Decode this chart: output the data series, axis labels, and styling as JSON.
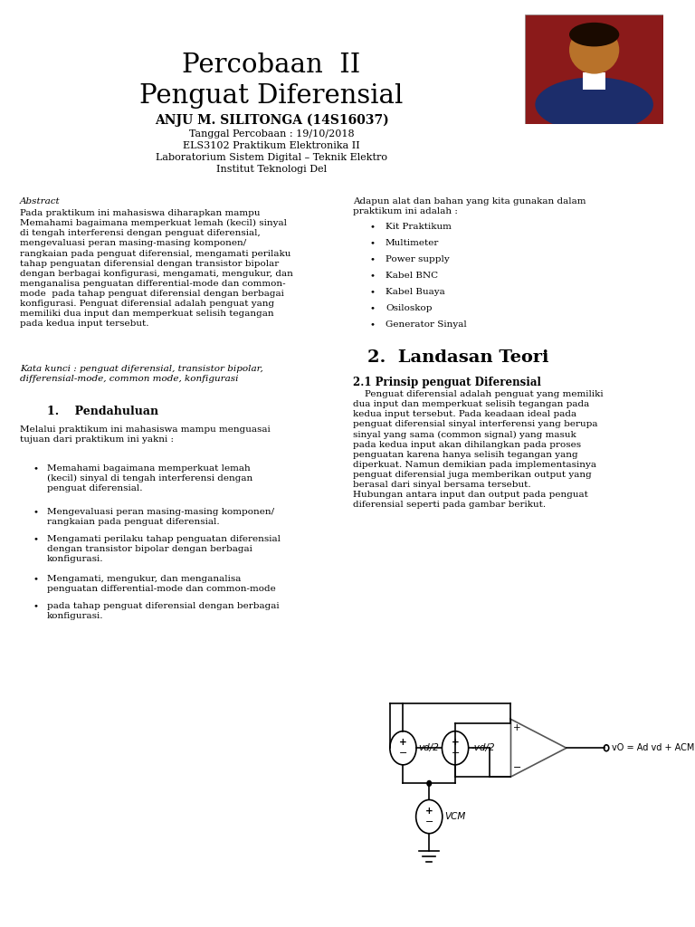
{
  "title_line1": "Percobaan  II",
  "title_line2": "Penguat Diferensial",
  "author": "ANJU M. SILITONGA (14S16037)",
  "date": "Tanggal Percobaan : 19/10/2018",
  "course": "ELS3102 Praktikum Elektronika II",
  "lab": "Laboratorium Sistem Digital – Teknik Elektro",
  "institute": "Institut Teknologi Del",
  "abstract_label": "Abstract",
  "abstract_text": "Pada praktikum ini mahasiswa diharapkan mampu\nMemahami bagaimana memperkuat lemah (kecil) sinyal\ndi tengah interferensi dengan penguat diferensial,\nmengevaluasi peran masing-masing komponen/\nrangkaian pada penguat diferensial, mengamati perilaku\ntahap penguatan diferensial dengan transistor bipolar\ndengan berbagai konfigurasi, mengamati, mengukur, dan\nmenganalisa penguatan differential-mode dan common-\nmode  pada tahap penguat diferensial dengan berbagai\nkonfigurasi. Penguat diferensial adalah penguat yang\nmemiliki dua input dan memperkuat selisih tegangan\npada kedua input tersebut.",
  "kata_kunci": "Kata kunci : penguat diferensial, transistor bipolar,\ndifferensial-mode, common mode, konfigurasi",
  "section1_title": "1.    Pendahuluan",
  "section1_intro": "Melalui praktikum ini mahasiswa mampu menguasai\ntujuan dari praktikum ini yakni :",
  "bullet1_items": [
    "Memahami bagaimana memperkuat lemah\n(kecil) sinyal di tengah interferensi dengan\npenguat diferensial.",
    "Mengevaluasi peran masing-masing komponen/\nrangkaian pada penguat diferensial.",
    "Mengamati perilaku tahap penguatan diferensial\ndengan transistor bipolar dengan berbagai\nkonfigurasi.",
    "Mengamati, mengukur, dan menganalisa\npenguatan differential-mode dan common-mode",
    "pada tahap penguat diferensial dengan berbagai\nkonfigurasi."
  ],
  "right_col_intro": "Adapun alat dan bahan yang kita gunakan dalam\npraktikum ini adalah :",
  "equipment_list": [
    "Kit Praktikum",
    "Multimeter",
    "Power supply",
    "Kabel BNC",
    "Kabel Buaya",
    "Osiloskop",
    "Generator Sinyal"
  ],
  "section2_title": "2.  Landasan Teori",
  "section2_sub": "2.1 Prinsip penguat Diferensial",
  "section2_text1": "    Penguat diferensial adalah penguat yang memiliki\ndua input dan memperkuat selisih tegangan pada\nkedua input tersebut. Pada keadaan ideal pada\npenguat diferensial sinyal interferensi yang berupa\nsinyal yang sama (",
  "section2_text1b": "common signal",
  "section2_text1c": ") yang masuk\npada kedua input akan dihilangkan pada proses\npenguatan karena hanya selisih tegangan yang\ndiperkuat. Namun demikian pada implementasinya\npenguat diferensial juga memberikan output yang\nberasal dari sinyal bersama tersebut.\nHubungan antara input dan output pada penguat\ndiferensial seperti pada gambar berikut.",
  "bg_color": "#ffffff",
  "text_color": "#000000"
}
